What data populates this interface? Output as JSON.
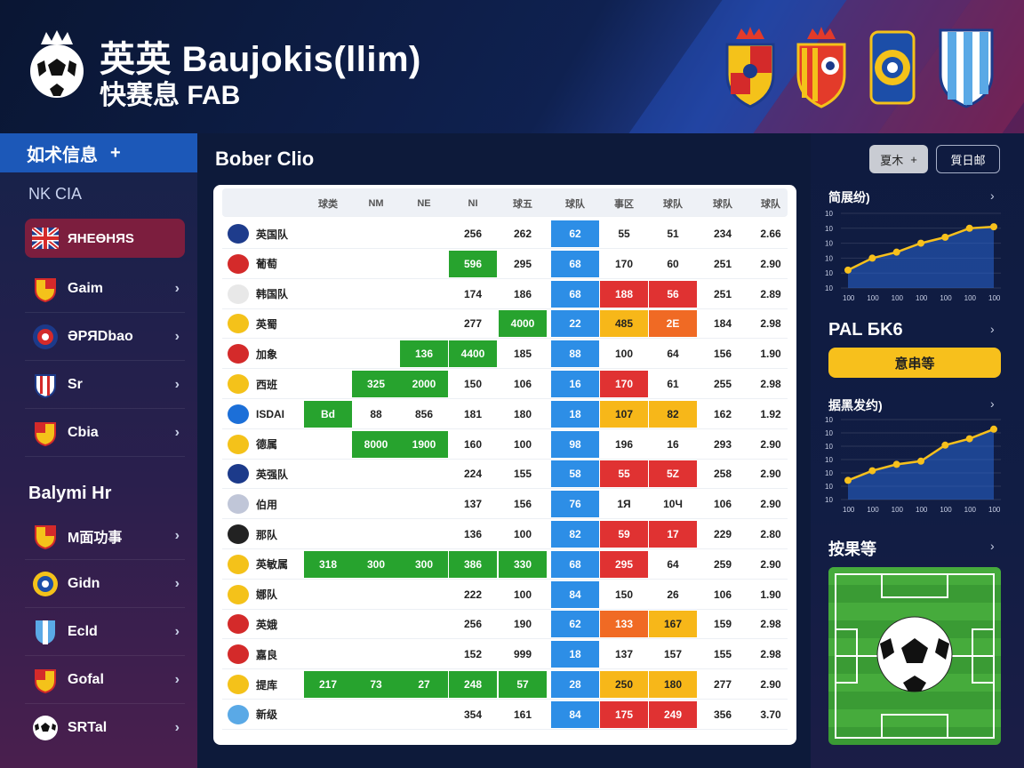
{
  "header": {
    "title": "英英 Baujokis(llim)",
    "subtitle": "快赛息 FAB",
    "logo_icon": "soccer-ball-crown-icon",
    "crests": [
      "crest-red-yellow",
      "crest-catalan",
      "crest-round-blue",
      "crest-blue-white"
    ]
  },
  "sidebar": {
    "header_label": "如术信息",
    "header_add": "+",
    "subheading": "NK CIA",
    "active_item": "ЯНЕӨНЯS",
    "items": [
      {
        "label": "Gaim",
        "icon": "crest-icon"
      },
      {
        "label": "ƏPЯDbao",
        "icon": "round-badge-icon"
      },
      {
        "label": "Sr",
        "icon": "shield-icon"
      },
      {
        "label": "Cbia",
        "icon": "crest-icon"
      }
    ],
    "section_title": "Balymi Hr",
    "section_items": [
      {
        "label": "M面功事",
        "icon": "crest-icon"
      },
      {
        "label": "Gidn",
        "icon": "round-badge-icon"
      },
      {
        "label": "Ecld",
        "icon": "blue-shield-icon"
      },
      {
        "label": "Gofal",
        "icon": "crest-icon"
      },
      {
        "label": "SRTal",
        "icon": "soccer-ball-icon"
      }
    ]
  },
  "main": {
    "title": "Bober Clio",
    "columns": [
      "",
      "球类",
      "NM",
      "NE",
      "NI",
      "球五",
      "球队",
      "事区",
      "球队",
      "球队",
      "球队"
    ],
    "rows": [
      {
        "team": "英国队",
        "cells": [
          "",
          "",
          "",
          "256",
          "262",
          "62",
          "55",
          "51",
          "234",
          "2.66"
        ],
        "styles": [
          "",
          "",
          "",
          "",
          "",
          "blue",
          "",
          "",
          "",
          ""
        ]
      },
      {
        "team": "葡萄",
        "cells": [
          "",
          "",
          "",
          "596",
          "295",
          "68",
          "170",
          "60",
          "251",
          "2.90"
        ],
        "styles": [
          "",
          "",
          "",
          "green",
          "",
          "blue",
          "",
          "",
          "",
          ""
        ]
      },
      {
        "team": "韩国队",
        "cells": [
          "",
          "",
          "",
          "174",
          "186",
          "68",
          "188",
          "56",
          "251",
          "2.89"
        ],
        "styles": [
          "",
          "",
          "",
          "",
          "",
          "blue",
          "red",
          "red",
          "",
          ""
        ]
      },
      {
        "team": "英蜀",
        "cells": [
          "",
          "",
          "",
          "277",
          "4000",
          "22",
          "485",
          "2E",
          "184",
          "2.98"
        ],
        "styles": [
          "",
          "",
          "",
          "",
          "green",
          "blue",
          "yellow",
          "orange",
          "",
          ""
        ]
      },
      {
        "team": "加象",
        "cells": [
          "",
          "",
          "136",
          "4400",
          "185",
          "88",
          "100",
          "64",
          "156",
          "1.90"
        ],
        "styles": [
          "",
          "",
          "green",
          "green",
          "",
          "blue",
          "",
          "",
          "",
          ""
        ]
      },
      {
        "team": "西班",
        "cells": [
          "",
          "325",
          "2000",
          "150",
          "106",
          "16",
          "170",
          "61",
          "255",
          "2.98"
        ],
        "styles": [
          "",
          "green",
          "green",
          "",
          "",
          "blue",
          "red",
          "",
          "",
          ""
        ]
      },
      {
        "team": "ISDAI",
        "cells": [
          "Bd",
          "88",
          "856",
          "181",
          "180",
          "18",
          "107",
          "82",
          "162",
          "1.92"
        ],
        "styles": [
          "green",
          "",
          "",
          "",
          "",
          "blue",
          "yellow",
          "yellow",
          "",
          ""
        ]
      },
      {
        "team": "德属",
        "cells": [
          "",
          "8000",
          "1900",
          "160",
          "100",
          "98",
          "196",
          "16",
          "293",
          "2.90"
        ],
        "styles": [
          "",
          "green",
          "green",
          "",
          "",
          "blue",
          "",
          "",
          "",
          ""
        ]
      },
      {
        "team": "英强队",
        "cells": [
          "",
          "",
          "",
          "224",
          "155",
          "58",
          "55",
          "5Z",
          "258",
          "2.90"
        ],
        "styles": [
          "",
          "",
          "",
          "",
          "",
          "blue",
          "red",
          "red",
          "",
          ""
        ]
      },
      {
        "team": "伯用",
        "cells": [
          "",
          "",
          "",
          "137",
          "156",
          "76",
          "1Я",
          "10Ч",
          "106",
          "2.90"
        ],
        "styles": [
          "",
          "",
          "",
          "",
          "",
          "blue",
          "",
          "",
          "",
          ""
        ]
      },
      {
        "team": "那队",
        "cells": [
          "",
          "",
          "",
          "136",
          "100",
          "82",
          "59",
          "17",
          "229",
          "2.80"
        ],
        "styles": [
          "",
          "",
          "",
          "",
          "",
          "blue",
          "red",
          "red",
          "",
          ""
        ]
      },
      {
        "team": "英敏属",
        "cells": [
          "318",
          "300",
          "300",
          "386",
          "330",
          "68",
          "295",
          "64",
          "259",
          "2.90"
        ],
        "styles": [
          "green",
          "green",
          "green",
          "green",
          "green",
          "blue",
          "red",
          "",
          "",
          ""
        ]
      },
      {
        "team": "娜队",
        "cells": [
          "",
          "",
          "",
          "222",
          "100",
          "84",
          "150",
          "26",
          "106",
          "1.90"
        ],
        "styles": [
          "",
          "",
          "",
          "",
          "",
          "blue",
          "",
          "",
          "",
          ""
        ]
      },
      {
        "team": "英娥",
        "cells": [
          "",
          "",
          "",
          "256",
          "190",
          "62",
          "133",
          "167",
          "159",
          "2.98"
        ],
        "styles": [
          "",
          "",
          "",
          "",
          "",
          "blue",
          "orange",
          "yellow",
          "",
          ""
        ]
      },
      {
        "team": "嘉良",
        "cells": [
          "",
          "",
          "",
          "152",
          "999",
          "18",
          "137",
          "157",
          "155",
          "2.98"
        ],
        "styles": [
          "",
          "",
          "",
          "",
          "",
          "blue",
          "",
          "",
          "",
          ""
        ]
      },
      {
        "team": "提库",
        "cells": [
          "217",
          "73",
          "27",
          "248",
          "57",
          "28",
          "250",
          "180",
          "277",
          "2.90"
        ],
        "styles": [
          "green",
          "green",
          "green",
          "green",
          "green",
          "blue",
          "yellow",
          "yellow",
          "",
          ""
        ]
      },
      {
        "team": "新级",
        "cells": [
          "",
          "",
          "",
          "354",
          "161",
          "84",
          "175",
          "249",
          "356",
          "3.70"
        ],
        "styles": [
          "",
          "",
          "",
          "",
          "",
          "blue",
          "red",
          "red",
          "",
          ""
        ]
      }
    ]
  },
  "right_panel": {
    "button1_label": "夏木",
    "button1_add": "+",
    "button2_label": "質日邮",
    "chart1_title": "简展纷)",
    "chart1_ticks_y": [
      "10",
      "10",
      "10",
      "10",
      "10",
      "10"
    ],
    "chart1_ticks_x": [
      "100",
      "100",
      "100",
      "100",
      "100",
      "100",
      "100"
    ],
    "chart1_values": [
      12,
      20,
      24,
      30,
      34,
      40,
      41
    ],
    "big_label": "PAL БK6",
    "yellow_button": "意串等",
    "chart2_title": "据黑发约)",
    "chart2_ticks_y": [
      "10",
      "10",
      "10",
      "10",
      "10",
      "10",
      "10"
    ],
    "chart2_ticks_x": [
      "100",
      "100",
      "100",
      "100",
      "100",
      "100",
      "100"
    ],
    "chart2_values": [
      12,
      18,
      22,
      24,
      34,
      38,
      44
    ],
    "pitch_title": "按果等",
    "accent_color": "#f7c01c",
    "chev": "›"
  }
}
